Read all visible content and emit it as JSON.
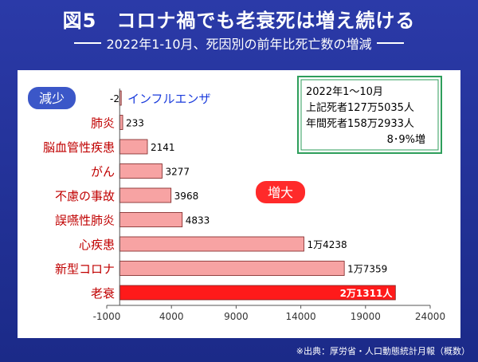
{
  "title": "図5　コロナ禍でも老衰死は増え続ける",
  "subtitle": "2022年1-10月、死因別の前年比死亡数の増減",
  "source": "※出典：厚労省・人口動態統計月報（概数）",
  "legend_decrease": "減少",
  "legend_increase": "増大",
  "infobox": {
    "line1": "2022年1～10月",
    "line2": "上記死者127万5035人",
    "line3": "年間死者158万2933人",
    "line4": "8･9%増"
  },
  "colors": {
    "background": "#1f2f8f",
    "bar": "#f7a3a3",
    "bar_highlight": "#ff1a1a",
    "label_red": "#c00000",
    "infl_blue": "#1a3bdc",
    "box_green": "#2e9e5b"
  },
  "chart_data": {
    "type": "bar",
    "orientation": "horizontal",
    "categories": [
      "インフルエンザ",
      "肺炎",
      "脳血管性疾患",
      "がん",
      "不慮の事故",
      "誤嚥性肺炎",
      "心疾患",
      "新型コロナ",
      "老衰"
    ],
    "values": [
      -2,
      233,
      2141,
      3277,
      3968,
      4833,
      14238,
      17359,
      21311
    ],
    "data_labels": [
      "-2",
      "233",
      "2141",
      "3277",
      "3968",
      "4833",
      "1万4238",
      "1万7359",
      "2万1311人"
    ],
    "xlim": [
      -1000,
      24000
    ],
    "xticks": [
      "-1000",
      "4000",
      "9000",
      "14000",
      "19000",
      "24000"
    ],
    "highlight": "老衰",
    "grid": false
  }
}
